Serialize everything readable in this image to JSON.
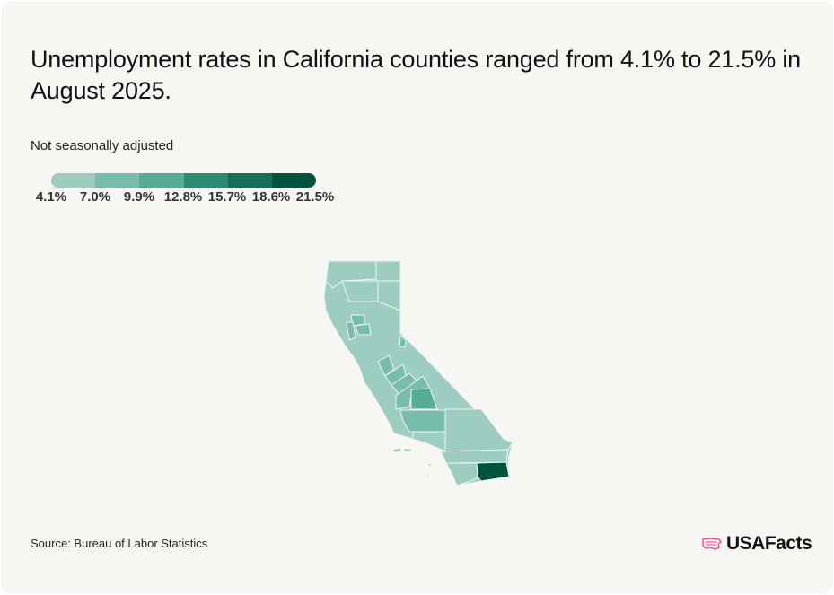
{
  "title": "Unemployment rates in California counties ranged from 4.1% to 21.5% in August 2025.",
  "subtitle": "Not seasonally adjusted",
  "legend": {
    "breaks": [
      "4.1%",
      "7.0%",
      "9.9%",
      "12.8%",
      "15.7%",
      "18.6%",
      "21.5%"
    ],
    "colors": [
      "#9dcdc1",
      "#78bcab",
      "#56ad96",
      "#2a8a72",
      "#146e58",
      "#00533e"
    ]
  },
  "map": {
    "region": "California",
    "unit": "counties",
    "min": 4.1,
    "max": 21.5
  },
  "source": "Source: Bureau of Labor Statistics",
  "logo": {
    "text": "USAFacts",
    "accent": "#e8418c"
  }
}
